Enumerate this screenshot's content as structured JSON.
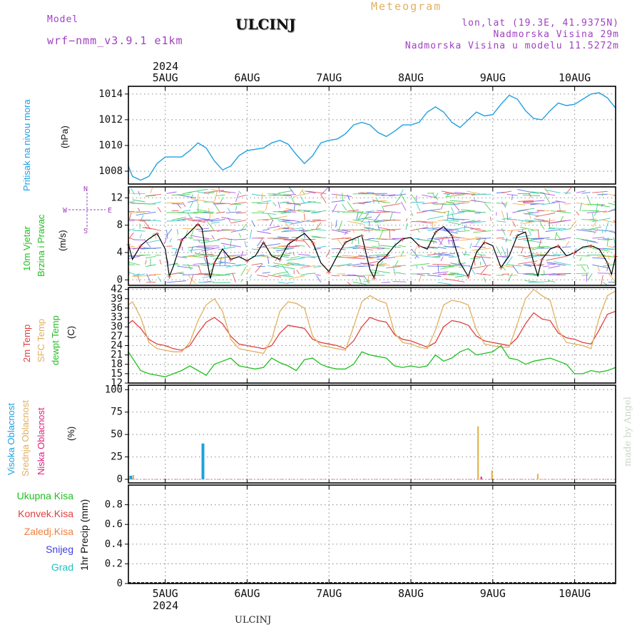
{
  "header": {
    "model_label": "Model",
    "model_name": "wrf−nmm_v3.9.1  e1km",
    "station": "ULCINJ",
    "meteogram_label": "Meteogram",
    "lonlat": "lon,lat (19.3E, 41.9375N)",
    "height": "Nadmorska Visina 29m",
    "model_height": "Nadmorska Visina u modelu 11.5272m",
    "year_top": "2024",
    "year_bottom": "2024",
    "footer_station": "ULCINJ",
    "watermark": "made by Angel"
  },
  "colors": {
    "pressure": "#20a0e0",
    "temp2m": "#e04040",
    "sfc": "#e0b060",
    "dew": "#20c020",
    "wind": "#000000",
    "high_cloud": "#20a0e0",
    "mid_cloud": "#e0b040",
    "low_cloud": "#e02080"
  },
  "panel_labels": {
    "pressure": {
      "line1": "Pritisak na nivou mora",
      "unit": "(hPa)"
    },
    "wind": {
      "line1": "10m Vjetar",
      "line2": "Brzina i Pravac",
      "unit": "(m/s)",
      "compass_w": "W",
      "compass_e": "E",
      "compass_n": "N",
      "compass_s": "S"
    },
    "temp": {
      "line1": "2m Temp",
      "line2": "SFC Temp",
      "line3": "dewpt Temp",
      "unit": "(C)"
    },
    "cloud": {
      "line1": "Visoka Oblacnost",
      "line2": "Srednja Oblacnost",
      "line3": "Niska Oblacnost",
      "unit": "(%)"
    },
    "precip": {
      "unit": "1hr Precip (mm)",
      "items": [
        "Ukupna Kisa",
        "Konvek.Kisa",
        "Zaledj.Kisa",
        "Snijeg",
        "Grad"
      ]
    }
  },
  "chart_data": [
    {
      "type": "line",
      "name": "pressure",
      "x_day_ticks": [
        "5AUG",
        "6AUG",
        "7AUG",
        "8AUG",
        "9AUG",
        "10AUG"
      ],
      "xlim_days": [
        4.55,
        10.5
      ],
      "ylim": [
        1007,
        1014.6
      ],
      "yticks": [
        1008,
        1010,
        1012,
        1014
      ],
      "series": [
        {
          "x": [
            4.55,
            4.6,
            4.7,
            4.8,
            4.9,
            5.0,
            5.1,
            5.2,
            5.3,
            5.4,
            5.5,
            5.6,
            5.7,
            5.8,
            5.9,
            6.0,
            6.1,
            6.2,
            6.3,
            6.4,
            6.5,
            6.6,
            6.7,
            6.8,
            6.9,
            7.0,
            7.1,
            7.2,
            7.3,
            7.4,
            7.5,
            7.6,
            7.7,
            7.8,
            7.9,
            8.0,
            8.1,
            8.2,
            8.3,
            8.4,
            8.5,
            8.6,
            8.7,
            8.8,
            8.9,
            9.0,
            9.1,
            9.2,
            9.3,
            9.4,
            9.5,
            9.6,
            9.7,
            9.8,
            9.9,
            10.0,
            10.1,
            10.2,
            10.3,
            10.4,
            10.5
          ],
          "y": [
            1008.4,
            1007.6,
            1007.3,
            1007.6,
            1008.6,
            1009.1,
            1009.1,
            1009.1,
            1009.6,
            1010.2,
            1009.8,
            1008.8,
            1008.1,
            1008.4,
            1009.2,
            1009.6,
            1009.7,
            1009.8,
            1010.2,
            1010.4,
            1010.1,
            1009.3,
            1008.6,
            1009.2,
            1010.2,
            1010.4,
            1010.5,
            1010.9,
            1011.6,
            1011.8,
            1011.6,
            1011.0,
            1010.7,
            1011.1,
            1011.6,
            1011.6,
            1011.8,
            1012.6,
            1013.0,
            1012.6,
            1011.8,
            1011.4,
            1012.0,
            1012.6,
            1012.3,
            1012.4,
            1013.2,
            1013.9,
            1013.6,
            1012.7,
            1012.1,
            1012.0,
            1012.7,
            1013.3,
            1013.1,
            1013.2,
            1013.6,
            1014.0,
            1014.1,
            1013.7,
            1012.9
          ]
        }
      ]
    },
    {
      "type": "line",
      "name": "wind",
      "xlim_days": [
        4.55,
        10.5
      ],
      "ylim": [
        -0.8,
        13.6
      ],
      "yticks": [
        0,
        4,
        8,
        12
      ],
      "series": [
        {
          "x": [
            4.55,
            4.6,
            4.7,
            4.8,
            4.9,
            5.0,
            5.05,
            5.1,
            5.2,
            5.3,
            5.4,
            5.45,
            5.5,
            5.55,
            5.6,
            5.7,
            5.8,
            5.9,
            6.0,
            6.1,
            6.2,
            6.3,
            6.4,
            6.5,
            6.6,
            6.7,
            6.8,
            6.9,
            7.0,
            7.1,
            7.2,
            7.3,
            7.4,
            7.5,
            7.55,
            7.6,
            7.7,
            7.8,
            7.9,
            8.0,
            8.1,
            8.2,
            8.3,
            8.4,
            8.5,
            8.6,
            8.7,
            8.8,
            8.9,
            9.0,
            9.1,
            9.2,
            9.3,
            9.4,
            9.5,
            9.55,
            9.6,
            9.7,
            9.8,
            9.9,
            10.0,
            10.1,
            10.2,
            10.3,
            10.4,
            10.45,
            10.5
          ],
          "y": [
            5.2,
            3.0,
            5.0,
            6.0,
            6.8,
            4.5,
            0.5,
            2.0,
            5.8,
            7.0,
            8.2,
            7.5,
            3.5,
            0.2,
            2.5,
            4.5,
            3.0,
            3.4,
            2.8,
            3.5,
            5.5,
            3.5,
            3.0,
            5.2,
            6.0,
            6.8,
            5.5,
            2.5,
            1.2,
            3.5,
            5.5,
            6.0,
            6.5,
            1.5,
            0.3,
            2.5,
            3.5,
            5.0,
            6.0,
            6.2,
            5.0,
            4.5,
            7.0,
            7.8,
            6.5,
            2.5,
            0.5,
            4.0,
            5.5,
            5.0,
            1.8,
            3.5,
            6.5,
            7.0,
            2.5,
            0.6,
            3.0,
            4.5,
            5.0,
            3.5,
            4.0,
            4.8,
            5.0,
            4.5,
            2.5,
            0.8,
            3.5
          ]
        }
      ]
    },
    {
      "type": "line",
      "name": "temperature",
      "xlim_days": [
        4.55,
        10.5
      ],
      "ylim": [
        12,
        42.6
      ],
      "yticks": [
        12,
        15,
        18,
        21,
        24,
        27,
        30,
        33,
        36,
        39,
        42
      ],
      "series": [
        {
          "x": [
            4.55,
            4.6,
            4.7,
            4.8,
            4.9,
            5.0,
            5.1,
            5.2,
            5.3,
            5.4,
            5.5,
            5.6,
            5.7,
            5.8,
            5.9,
            6.0,
            6.1,
            6.2,
            6.3,
            6.4,
            6.5,
            6.6,
            6.7,
            6.8,
            6.9,
            7.0,
            7.1,
            7.2,
            7.3,
            7.4,
            7.5,
            7.6,
            7.7,
            7.8,
            7.9,
            8.0,
            8.1,
            8.2,
            8.3,
            8.4,
            8.5,
            8.6,
            8.7,
            8.8,
            8.9,
            9.0,
            9.1,
            9.2,
            9.3,
            9.4,
            9.5,
            9.6,
            9.7,
            9.8,
            9.9,
            10.0,
            10.1,
            10.2,
            10.3,
            10.4,
            10.5
          ],
          "y": [
            31,
            32,
            29.5,
            26,
            24.5,
            24,
            23,
            22.5,
            24,
            28,
            31.5,
            33,
            31,
            27,
            24.5,
            24,
            23.5,
            23,
            24,
            28,
            30.5,
            30,
            29.5,
            26,
            25,
            24.5,
            24,
            23,
            25.5,
            30,
            33,
            32,
            31.5,
            27.5,
            26,
            25.5,
            24.5,
            23.5,
            25,
            30,
            32,
            31.5,
            30.5,
            27,
            25.5,
            25,
            24.5,
            24,
            26.5,
            31,
            34.5,
            32.5,
            32,
            28,
            26.5,
            26,
            25,
            24.5,
            29,
            34,
            35
          ]
        },
        {
          "x": [
            4.55,
            4.6,
            4.7,
            4.8,
            4.9,
            5.0,
            5.1,
            5.2,
            5.3,
            5.4,
            5.5,
            5.6,
            5.7,
            5.8,
            5.9,
            6.0,
            6.1,
            6.2,
            6.3,
            6.4,
            6.5,
            6.6,
            6.7,
            6.8,
            6.9,
            7.0,
            7.1,
            7.2,
            7.3,
            7.4,
            7.5,
            7.6,
            7.7,
            7.8,
            7.9,
            8.0,
            8.1,
            8.2,
            8.3,
            8.4,
            8.5,
            8.6,
            8.7,
            8.8,
            8.9,
            9.0,
            9.1,
            9.2,
            9.3,
            9.4,
            9.5,
            9.6,
            9.7,
            9.8,
            9.9,
            10.0,
            10.1,
            10.2,
            10.3,
            10.4,
            10.5
          ],
          "y": [
            37,
            38,
            33,
            25,
            23,
            22.5,
            22,
            22,
            25,
            32,
            37,
            39,
            35,
            26,
            23,
            22.5,
            22,
            21.5,
            26,
            35,
            38,
            37.5,
            36,
            27,
            24,
            23.5,
            23,
            22.5,
            30,
            38,
            40,
            38.5,
            37.5,
            28,
            25,
            24.5,
            23.5,
            23,
            29,
            37,
            38.5,
            38,
            37,
            29,
            24.5,
            24,
            23.5,
            23.5,
            31,
            39,
            42,
            40,
            38.5,
            29,
            25,
            24.5,
            24,
            23,
            33,
            40,
            41.5
          ]
        },
        {
          "x": [
            4.55,
            4.6,
            4.7,
            4.8,
            4.9,
            5.0,
            5.1,
            5.2,
            5.3,
            5.4,
            5.5,
            5.6,
            5.7,
            5.8,
            5.9,
            6.0,
            6.1,
            6.2,
            6.3,
            6.4,
            6.5,
            6.6,
            6.7,
            6.8,
            6.9,
            7.0,
            7.1,
            7.2,
            7.3,
            7.4,
            7.5,
            7.6,
            7.7,
            7.8,
            7.9,
            8.0,
            8.1,
            8.2,
            8.3,
            8.4,
            8.5,
            8.6,
            8.7,
            8.8,
            8.9,
            9.0,
            9.1,
            9.2,
            9.3,
            9.4,
            9.5,
            9.6,
            9.7,
            9.8,
            9.9,
            10.0,
            10.1,
            10.2,
            10.3,
            10.4,
            10.5
          ],
          "y": [
            22,
            20,
            16,
            15,
            14.5,
            14,
            15,
            16,
            17.5,
            16,
            14.5,
            18,
            19,
            20,
            17.5,
            17,
            16.5,
            17,
            20,
            18.5,
            17.5,
            16,
            19.5,
            20,
            18,
            17,
            16.5,
            16.5,
            18,
            22,
            21,
            20.5,
            20,
            17.5,
            17,
            17.5,
            17,
            17.5,
            21,
            19,
            20,
            22,
            23,
            21,
            21.5,
            22,
            24,
            20,
            19.5,
            18,
            19,
            19.5,
            20,
            19,
            18,
            15,
            15,
            16,
            15.5,
            16,
            17
          ]
        }
      ]
    },
    {
      "type": "bar",
      "name": "cloud_cover",
      "xlim_days": [
        4.55,
        10.5
      ],
      "ylim": [
        -4,
        105
      ],
      "yticks": [
        0,
        25,
        50,
        75,
        100
      ],
      "series": [
        {
          "name": "Visoka Oblacnost",
          "x": [
            4.58,
            5.46
          ],
          "values": [
            4,
            40
          ]
        },
        {
          "name": "Srednja Oblacnost",
          "x": [
            4.61,
            8.82,
            8.99,
            9.55
          ],
          "values": [
            5,
            59,
            10,
            6
          ]
        },
        {
          "name": "Niska Oblacnost",
          "x": [
            8.86
          ],
          "values": [
            3
          ]
        }
      ]
    },
    {
      "type": "line",
      "name": "precipitation",
      "xlim_days": [
        4.55,
        10.5
      ],
      "ylim": [
        0,
        1.0
      ],
      "yticks": [
        0,
        0.2,
        0.4,
        0.6,
        0.8
      ],
      "series": []
    }
  ]
}
